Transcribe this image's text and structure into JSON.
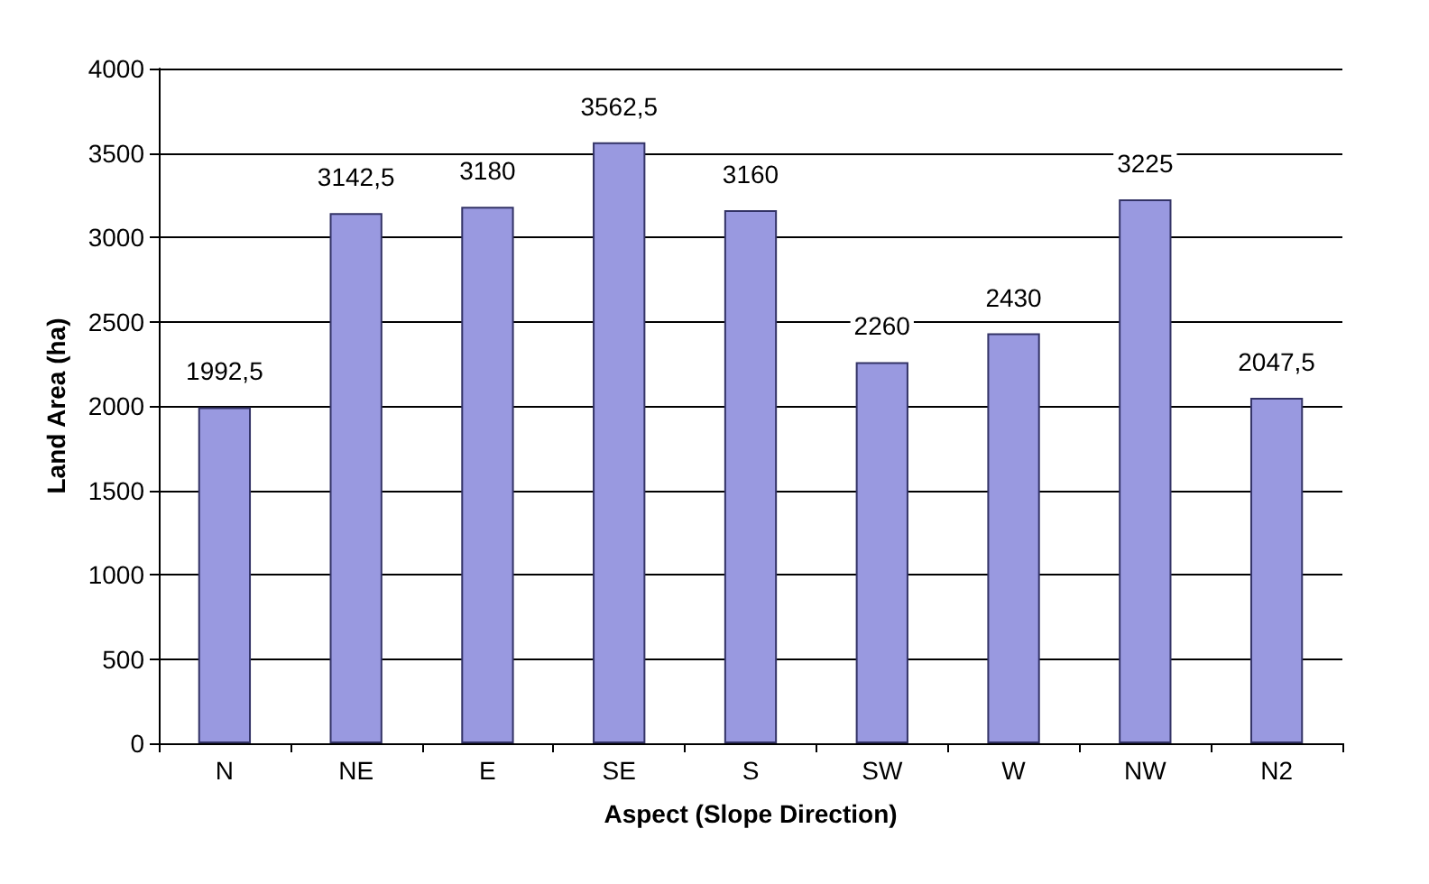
{
  "chart_data": {
    "type": "bar",
    "xlabel": "Aspect (Slope Direction)",
    "ylabel": "Land Area (ha)",
    "categories": [
      "N",
      "NE",
      "E",
      "SE",
      "S",
      "SW",
      "W",
      "NW",
      "N2"
    ],
    "values": [
      1992.5,
      3142.5,
      3180,
      3562.5,
      3160,
      2260,
      2430,
      3225,
      2047.5
    ],
    "value_labels": [
      "1992,5",
      "3142,5",
      "3180",
      "3562,5",
      "3160",
      "2260",
      "2430",
      "3225",
      "2047,5"
    ],
    "color": "#9999e0",
    "ylim": [
      0,
      4000
    ],
    "yticks": [
      0,
      500,
      1000,
      1500,
      2000,
      2500,
      3000,
      3500,
      4000
    ],
    "grid": "y"
  }
}
